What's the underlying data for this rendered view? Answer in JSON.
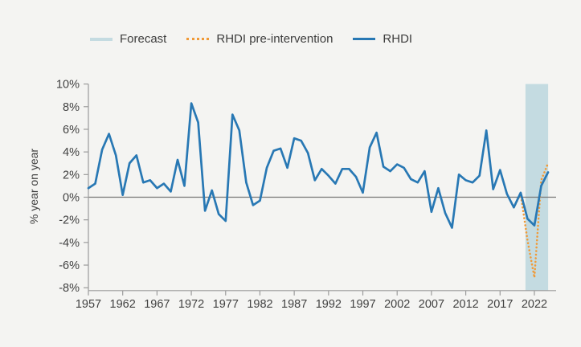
{
  "page": {
    "background": "#f4f4f2"
  },
  "legend": {
    "items": [
      {
        "label": "Forecast",
        "swatch": "band",
        "color": "#c4dbe1"
      },
      {
        "label": "RHDI pre-intervention",
        "swatch": "dotted-line",
        "color": "#f09a38"
      },
      {
        "label": "RHDI",
        "swatch": "solid-line",
        "color": "#2878b4"
      }
    ]
  },
  "chart_data": {
    "type": "line",
    "title": "",
    "ylabel": "% year on year",
    "ylim": [
      -8,
      10
    ],
    "xlim": [
      1957,
      2025
    ],
    "grid": "zero-line-only",
    "legend_position": "top",
    "y_ticks": [
      {
        "value": 10,
        "label": "10%"
      },
      {
        "value": 8,
        "label": "8%"
      },
      {
        "value": 6,
        "label": "6%"
      },
      {
        "value": 4,
        "label": "4%"
      },
      {
        "value": 2,
        "label": "2%"
      },
      {
        "value": 0,
        "label": "0%"
      },
      {
        "value": -2,
        "label": "-2%"
      },
      {
        "value": -4,
        "label": "-4%"
      },
      {
        "value": -6,
        "label": "-6%"
      },
      {
        "value": -8,
        "label": "-8%"
      }
    ],
    "x_ticks": [
      {
        "value": 1957,
        "label": "1957"
      },
      {
        "value": 1962,
        "label": "1962"
      },
      {
        "value": 1967,
        "label": "1967"
      },
      {
        "value": 1972,
        "label": "1972"
      },
      {
        "value": 1977,
        "label": "1977"
      },
      {
        "value": 1982,
        "label": "1982"
      },
      {
        "value": 1987,
        "label": "1987"
      },
      {
        "value": 1992,
        "label": "1992"
      },
      {
        "value": 1997,
        "label": "1997"
      },
      {
        "value": 2002,
        "label": "2002"
      },
      {
        "value": 2007,
        "label": "2007"
      },
      {
        "value": 2012,
        "label": "2012"
      },
      {
        "value": 2017,
        "label": "2017"
      },
      {
        "value": 2022,
        "label": "2022"
      }
    ],
    "forecast_band": {
      "from": 2020.7,
      "to": 2024,
      "color": "#c4dbe1"
    },
    "series": [
      {
        "name": "RHDI pre-intervention",
        "color": "#f09a38",
        "line_style": "dotted",
        "x": [
          2019,
          2020,
          2021,
          2022,
          2023,
          2024
        ],
        "values": [
          -0.9,
          0.3,
          -3.8,
          -7.1,
          1.5,
          3.0
        ]
      },
      {
        "name": "RHDI",
        "color": "#2878b4",
        "line_style": "solid",
        "x": [
          1957,
          1958,
          1959,
          1960,
          1961,
          1962,
          1963,
          1964,
          1965,
          1966,
          1967,
          1968,
          1969,
          1970,
          1971,
          1972,
          1973,
          1974,
          1975,
          1976,
          1977,
          1978,
          1979,
          1980,
          1981,
          1982,
          1983,
          1984,
          1985,
          1986,
          1987,
          1988,
          1989,
          1990,
          1991,
          1992,
          1993,
          1994,
          1995,
          1996,
          1997,
          1998,
          1999,
          2000,
          2001,
          2002,
          2003,
          2004,
          2005,
          2006,
          2007,
          2008,
          2009,
          2010,
          2011,
          2012,
          2013,
          2014,
          2015,
          2016,
          2017,
          2018,
          2019,
          2020,
          2021,
          2022,
          2023,
          2024
        ],
        "values": [
          0.8,
          1.2,
          4.2,
          5.6,
          3.7,
          0.2,
          3.0,
          3.7,
          1.3,
          1.5,
          0.8,
          1.2,
          0.5,
          3.3,
          1.0,
          8.3,
          6.6,
          -1.2,
          0.6,
          -1.5,
          -2.1,
          7.3,
          5.9,
          1.3,
          -0.7,
          -0.3,
          2.6,
          4.1,
          4.3,
          2.6,
          5.2,
          5.0,
          3.9,
          1.5,
          2.5,
          1.9,
          1.2,
          2.5,
          2.5,
          1.8,
          0.4,
          4.4,
          5.7,
          2.7,
          2.3,
          2.9,
          2.6,
          1.6,
          1.3,
          2.3,
          -1.3,
          0.8,
          -1.4,
          -2.7,
          2.0,
          1.5,
          1.3,
          1.9,
          5.9,
          0.7,
          2.4,
          0.3,
          -0.9,
          0.4,
          -1.9,
          -2.5,
          1.0,
          2.2
        ]
      }
    ],
    "colors": {
      "background": "#f4f4f2",
      "rhdi_line": "#2878b4",
      "pre_intervention_line": "#f09a38",
      "forecast_band": "#c4dbe1",
      "zero_line": "#757575",
      "axis": "#9b9b9b",
      "text": "#414141"
    }
  }
}
